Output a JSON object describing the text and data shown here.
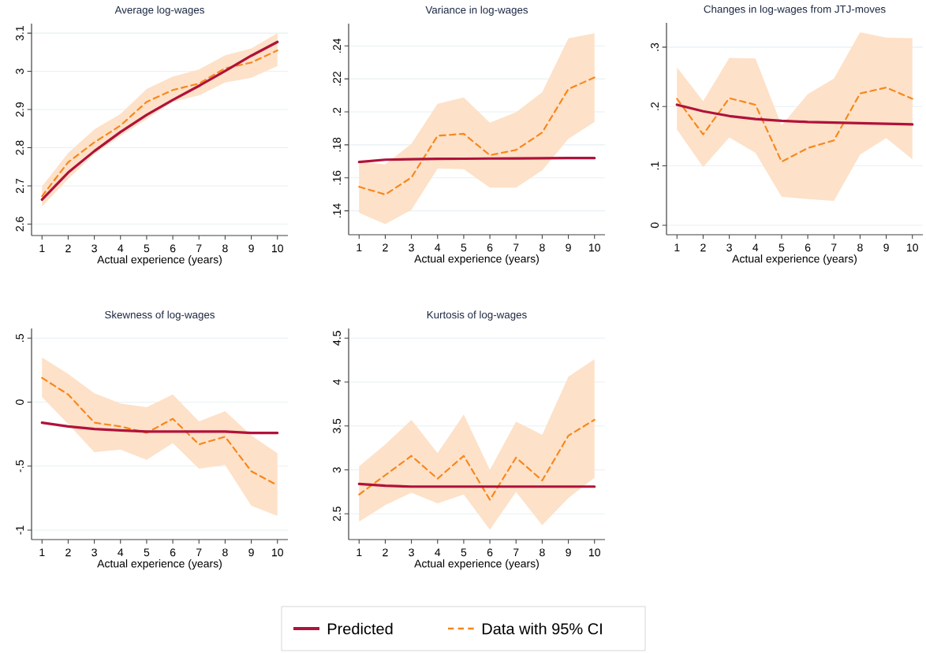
{
  "chart_data": [
    {
      "type": "line",
      "title": "Average log-wages",
      "xlabel": "Actual experience (years)",
      "x": [
        1,
        2,
        3,
        4,
        5,
        6,
        7,
        8,
        9,
        10
      ],
      "xlim": [
        0.6,
        10.4
      ],
      "xticks": [
        1,
        2,
        3,
        4,
        5,
        6,
        7,
        8,
        9,
        10
      ],
      "ylim": [
        2.57,
        3.125
      ],
      "yticks": [
        2.6,
        2.7,
        2.8,
        2.9,
        3,
        3.1
      ],
      "grid": "y",
      "series": [
        {
          "color": "#b0123b",
          "line_style": "solid",
          "values": [
            2.664,
            2.735,
            2.791,
            2.841,
            2.886,
            2.925,
            2.962,
            3.001,
            3.041,
            3.077
          ]
        },
        {
          "color": "#f7861b",
          "line_style": "dashed",
          "values": [
            2.673,
            2.762,
            2.814,
            2.858,
            2.92,
            2.951,
            2.968,
            3.008,
            3.023,
            3.055
          ],
          "lower": [
            2.646,
            2.718,
            2.783,
            2.831,
            2.875,
            2.92,
            2.937,
            2.971,
            2.983,
            3.014
          ],
          "upper": [
            2.699,
            2.786,
            2.848,
            2.888,
            2.954,
            2.986,
            3.005,
            3.042,
            3.06,
            3.1
          ]
        }
      ]
    },
    {
      "type": "line",
      "title": "Variance in log-wages",
      "xlabel": "Actual experience (years)",
      "x": [
        1,
        2,
        3,
        4,
        5,
        6,
        7,
        8,
        9,
        10
      ],
      "xlim": [
        0.6,
        10.4
      ],
      "xticks": [
        1,
        2,
        3,
        4,
        5,
        6,
        7,
        8,
        9,
        10
      ],
      "ylim": [
        0.1255,
        0.2535
      ],
      "yticks": [
        {
          "value": 0.14,
          "label": ".14"
        },
        {
          "value": 0.16,
          "label": ".16"
        },
        {
          "value": 0.18,
          "label": ".18"
        },
        {
          "value": 0.2,
          "label": ".2"
        },
        {
          "value": 0.22,
          "label": ".22"
        },
        {
          "value": 0.24,
          "label": ".24"
        }
      ],
      "grid": "y",
      "series": [
        {
          "color": "#b0123b",
          "line_style": "solid",
          "values": [
            0.1696,
            0.171,
            0.1713,
            0.1715,
            0.1716,
            0.1717,
            0.1718,
            0.1719,
            0.172,
            0.172
          ]
        },
        {
          "color": "#f7861b",
          "line_style": "dashed",
          "values": [
            0.1546,
            0.1499,
            0.1602,
            0.1855,
            0.1867,
            0.1737,
            0.1769,
            0.1875,
            0.2138,
            0.2209
          ],
          "lower": [
            0.1387,
            0.1319,
            0.1406,
            0.1656,
            0.1653,
            0.154,
            0.154,
            0.1645,
            0.1836,
            0.1939
          ],
          "upper": [
            0.17,
            0.1681,
            0.1807,
            0.2049,
            0.2087,
            0.1934,
            0.1998,
            0.2119,
            0.2445,
            0.2476
          ]
        }
      ]
    },
    {
      "type": "line",
      "title": "Changes in log-wages from JTJ-moves",
      "xlabel": "Actual experience (years)",
      "x": [
        1,
        2,
        3,
        4,
        5,
        6,
        7,
        8,
        9,
        10
      ],
      "xlim": [
        0.6,
        10.4
      ],
      "xticks": [
        1,
        2,
        3,
        4,
        5,
        6,
        7,
        8,
        9,
        10
      ],
      "ylim": [
        -0.016,
        0.341
      ],
      "yticks": [
        0,
        {
          "value": 0.1,
          "label": ".1"
        },
        {
          "value": 0.2,
          "label": ".2"
        },
        {
          "value": 0.3,
          "label": ".3"
        }
      ],
      "grid": "y",
      "series": [
        {
          "color": "#b0123b",
          "line_style": "solid",
          "values": [
            0.203,
            0.192,
            0.184,
            0.179,
            0.176,
            0.174,
            0.173,
            0.172,
            0.171,
            0.17
          ]
        },
        {
          "color": "#f7861b",
          "line_style": "dashed",
          "values": [
            0.213,
            0.153,
            0.214,
            0.203,
            0.107,
            0.13,
            0.143,
            0.222,
            0.232,
            0.213
          ],
          "lower": [
            0.161,
            0.098,
            0.148,
            0.122,
            0.048,
            0.044,
            0.041,
            0.119,
            0.147,
            0.111
          ],
          "upper": [
            0.266,
            0.209,
            0.282,
            0.281,
            0.168,
            0.221,
            0.247,
            0.325,
            0.316,
            0.315
          ]
        }
      ]
    },
    {
      "type": "line",
      "title": "Skewness of log-wages",
      "xlabel": "Actual experience (years)",
      "x": [
        1,
        2,
        3,
        4,
        5,
        6,
        7,
        8,
        9,
        10
      ],
      "xlim": [
        0.6,
        10.4
      ],
      "xticks": [
        1,
        2,
        3,
        4,
        5,
        6,
        7,
        8,
        9,
        10
      ],
      "ylim": [
        -1.074,
        0.576
      ],
      "yticks": [
        -1,
        {
          "value": -0.5,
          "label": "-.5"
        },
        0,
        {
          "value": 0.5,
          "label": ".5"
        }
      ],
      "grid": "y",
      "series": [
        {
          "color": "#b0123b",
          "line_style": "solid",
          "values": [
            -0.16,
            -0.19,
            -0.21,
            -0.22,
            -0.23,
            -0.23,
            -0.23,
            -0.23,
            -0.24,
            -0.24
          ]
        },
        {
          "color": "#f7861b",
          "line_style": "dashed",
          "values": [
            0.19,
            0.06,
            -0.16,
            -0.19,
            -0.24,
            -0.13,
            -0.33,
            -0.27,
            -0.54,
            -0.65
          ],
          "lower": [
            0.04,
            -0.17,
            -0.39,
            -0.37,
            -0.45,
            -0.32,
            -0.52,
            -0.49,
            -0.81,
            -0.89
          ],
          "upper": [
            0.35,
            0.22,
            0.07,
            -0.01,
            -0.04,
            0.06,
            -0.15,
            -0.07,
            -0.26,
            -0.4
          ]
        }
      ]
    },
    {
      "type": "line",
      "title": "Kurtosis of log-wages",
      "xlabel": "Actual experience (years)",
      "x": [
        1,
        2,
        3,
        4,
        5,
        6,
        7,
        8,
        9,
        10
      ],
      "xlim": [
        0.6,
        10.4
      ],
      "xticks": [
        1,
        2,
        3,
        4,
        5,
        6,
        7,
        8,
        9,
        10
      ],
      "ylim": [
        2.207,
        4.61
      ],
      "yticks": [
        2.5,
        3,
        3.5,
        4,
        4.5
      ],
      "grid": "y",
      "legend": "bottom",
      "series": [
        {
          "name": "Predicted",
          "color": "#b0123b",
          "line_style": "solid",
          "values": [
            2.84,
            2.82,
            2.81,
            2.81,
            2.81,
            2.81,
            2.81,
            2.81,
            2.81,
            2.81
          ]
        },
        {
          "name": "Data with 95% CI",
          "color": "#f7861b",
          "line_style": "dashed",
          "values": [
            2.72,
            2.94,
            3.16,
            2.9,
            3.16,
            2.66,
            3.14,
            2.88,
            3.39,
            3.57
          ],
          "lower": [
            2.41,
            2.6,
            2.74,
            2.62,
            2.72,
            2.32,
            2.75,
            2.37,
            2.68,
            2.91
          ],
          "upper": [
            3.04,
            3.29,
            3.57,
            3.19,
            3.63,
            3.0,
            3.55,
            3.4,
            4.06,
            4.26
          ]
        }
      ]
    }
  ]
}
